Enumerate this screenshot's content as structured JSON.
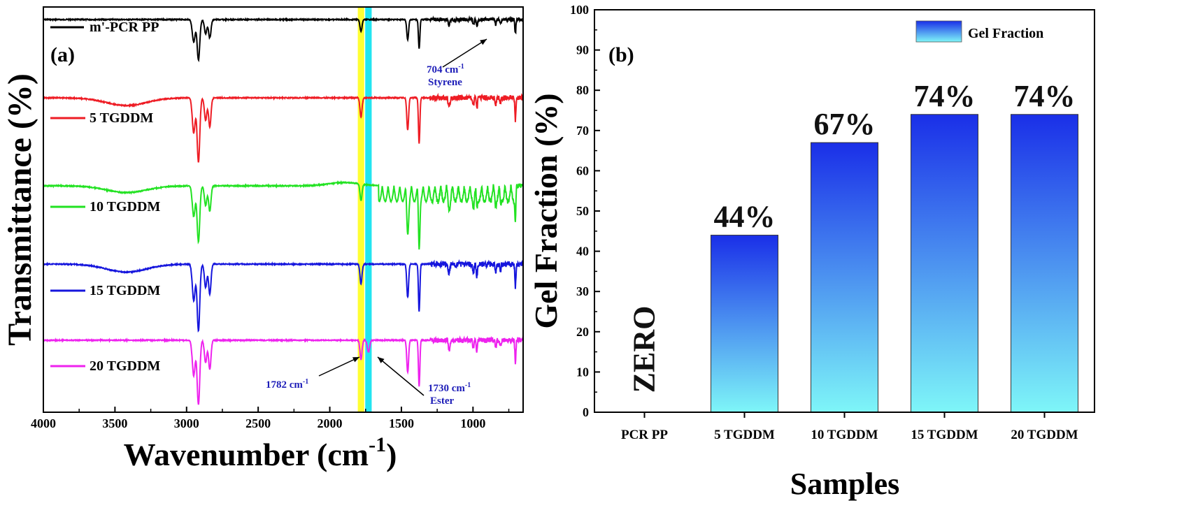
{
  "chart_data": [
    {
      "type": "line",
      "panel_label": "(a)",
      "xlabel": "Wavenumber (cm",
      "xlabel_sup": "-1",
      "xlabel_close": ")",
      "ylabel": "Transmittance (%)",
      "xlim": [
        4000,
        650
      ],
      "x_ticks": [
        4000,
        3500,
        3000,
        2500,
        2000,
        1500,
        1000
      ],
      "x_tick_labels": [
        "4000",
        "3500",
        "3000",
        "2500",
        "2000",
        "1500",
        "1000"
      ],
      "y_ticks_shown": false,
      "highlight_bands": [
        {
          "center": 1782,
          "width": 45,
          "color": "#ffff33"
        },
        {
          "center": 1730,
          "width": 45,
          "color": "#22e5f0"
        }
      ],
      "series": [
        {
          "name": "m'-PCR PP",
          "color": "#000000"
        },
        {
          "name": "5 TGDDM",
          "color": "#ee1c24"
        },
        {
          "name": "10 TGDDM",
          "color": "#22e222"
        },
        {
          "name": "15 TGDDM",
          "color": "#1515dd"
        },
        {
          "name": "20 TGDDM",
          "color": "#ee22ee"
        }
      ],
      "peaks": [
        {
          "x": 2950,
          "depth": 0.55,
          "width": 14
        },
        {
          "x": 2917,
          "depth": 1.0,
          "width": 13
        },
        {
          "x": 2867,
          "depth": 0.35,
          "width": 12
        },
        {
          "x": 2838,
          "depth": 0.45,
          "width": 12
        },
        {
          "x": 1782,
          "depth": 0.3,
          "width": 10
        },
        {
          "x": 1456,
          "depth": 0.5,
          "width": 9
        },
        {
          "x": 1376,
          "depth": 0.72,
          "width": 7
        },
        {
          "x": 1167,
          "depth": 0.15,
          "width": 8
        },
        {
          "x": 997,
          "depth": 0.12,
          "width": 6
        },
        {
          "x": 973,
          "depth": 0.18,
          "width": 6
        },
        {
          "x": 841,
          "depth": 0.12,
          "width": 6
        },
        {
          "x": 808,
          "depth": 0.1,
          "width": 5
        },
        {
          "x": 704,
          "depth": 0.35,
          "width": 5
        }
      ],
      "annotations": [
        {
          "lines": [
            "704 cm",
            "Styrene"
          ],
          "sup": "-1"
        },
        {
          "lines": [
            "1782 cm"
          ],
          "sup": "-1"
        },
        {
          "lines": [
            "1730 cm",
            "Ester"
          ],
          "sup": "-1"
        }
      ]
    },
    {
      "type": "bar",
      "panel_label": "(b)",
      "title": "",
      "xlabel": "Samples",
      "ylabel": "Gel Fraction (%)",
      "categories": [
        "PCR PP",
        "5 TGDDM",
        "10 TGDDM",
        "15 TGDDM",
        "20 TGDDM"
      ],
      "series": [
        {
          "name": "Gel Fraction",
          "values": [
            0,
            44,
            67,
            74,
            74
          ]
        }
      ],
      "data_labels": [
        "ZERO",
        "44%",
        "67%",
        "74%",
        "74%"
      ],
      "ylim": [
        0,
        100
      ],
      "y_ticks": [
        0,
        10,
        20,
        30,
        40,
        50,
        60,
        70,
        80,
        90,
        100
      ],
      "y_tick_labels": [
        "0",
        "10",
        "20",
        "30",
        "40",
        "50",
        "60",
        "70",
        "80",
        "90",
        "100"
      ],
      "legend_position": "top-right",
      "bar_gradient": {
        "top": "#1a2fe8",
        "bottom": "#7ef6f8"
      }
    }
  ]
}
